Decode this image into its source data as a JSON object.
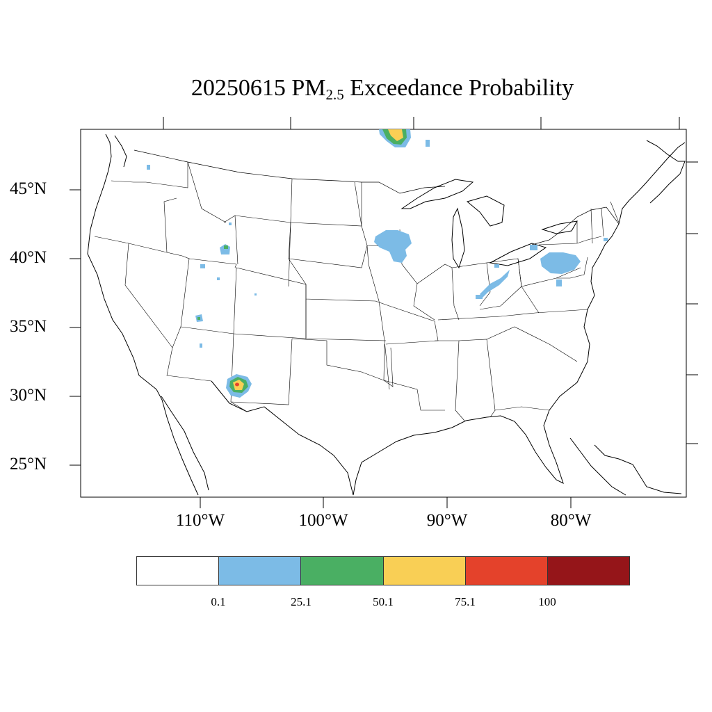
{
  "title": {
    "date": "20250615",
    "pm": "PM",
    "sub": "2.5",
    "rest": "Exceedance Probability"
  },
  "latitude_labels": [
    "45°N",
    "40°N",
    "35°N",
    "30°N",
    "25°N"
  ],
  "longitude_labels": [
    "110°W",
    "100°W",
    "90°W",
    "80°W"
  ],
  "colorbar": {
    "colors": [
      "#ffffff",
      "#7cbbe6",
      "#4aaf63",
      "#f9cf55",
      "#e4422b",
      "#951519"
    ],
    "labels": [
      "0.1",
      "25.1",
      "50.1",
      "75.1",
      "100"
    ]
  },
  "chart_data": {
    "type": "heatmap",
    "title": "20250615 PM2.5 Exceedance Probability",
    "xlabel": "",
    "ylabel": "",
    "levels": [
      0.1,
      25.1,
      50.1,
      75.1,
      100
    ],
    "hotspots": [
      {
        "lon": -107.0,
        "lat": 31.0,
        "max_level": 75.1
      },
      {
        "lon": -93.7,
        "lat": 49.3,
        "max_level": 75.1
      },
      {
        "lon": -77.5,
        "lat": 40.6,
        "max_level": 0.1
      },
      {
        "lon": -93.7,
        "lat": 41.9,
        "max_level": 0.1
      },
      {
        "lon": -85.5,
        "lat": 38.5,
        "max_level": 0.1
      },
      {
        "lon": -108.0,
        "lat": 41.9,
        "max_level": 25.1
      },
      {
        "lon": -109.8,
        "lat": 35.6,
        "max_level": 25.1
      }
    ]
  }
}
